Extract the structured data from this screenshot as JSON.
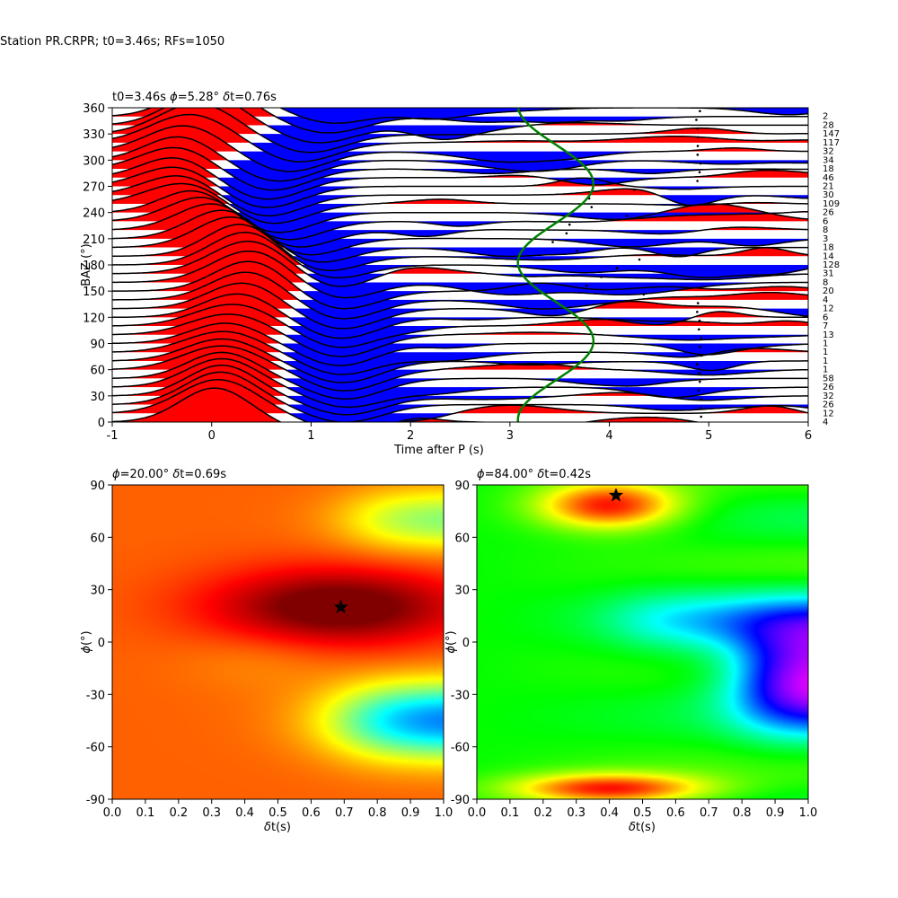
{
  "figure": {
    "suptitle": "Station PR.CRPR; t0=3.46s; RFs=1050"
  },
  "chart_data": [
    {
      "type": "wiggle",
      "title_parts": [
        "t0=3.46s ",
        "ϕ",
        "=5.28° ",
        "δ",
        "t=0.76s"
      ],
      "xlabel": "Time after P (s)",
      "ylabel": "BAZ (°)",
      "xlim": [
        -1,
        6
      ],
      "ylim": [
        0,
        360
      ],
      "xticks": [
        -1,
        0,
        1,
        2,
        3,
        4,
        5,
        6
      ],
      "yticks": [
        0,
        30,
        60,
        90,
        120,
        150,
        180,
        210,
        240,
        270,
        300,
        330,
        360
      ],
      "baz_bins": [
        0,
        10,
        20,
        30,
        40,
        50,
        60,
        70,
        80,
        90,
        100,
        110,
        120,
        130,
        140,
        150,
        160,
        170,
        180,
        190,
        200,
        210,
        220,
        230,
        240,
        250,
        260,
        270,
        280,
        290,
        300,
        310,
        320,
        330,
        340,
        350,
        360
      ],
      "counts": [
        "4",
        "12",
        "26",
        "32",
        "26",
        "58",
        "1",
        "1",
        "1",
        "1",
        "13",
        "7",
        "6",
        "12",
        "4",
        "20",
        "8",
        "31",
        "128",
        "14",
        "18",
        "3",
        "8",
        "6",
        "26",
        "109",
        "30",
        "21",
        "46",
        "18",
        "34",
        "32",
        "117",
        "147",
        "28",
        "2"
      ],
      "counts_order": "bottom-to-top",
      "positive_color": "#ff0000",
      "negative_color": "#0000ff",
      "moveout_curve": {
        "color": "#008000",
        "center_time": 3.46,
        "amplitude": 0.38
      }
    },
    {
      "type": "heatmap",
      "title_parts": [
        "ϕ",
        "=20.00° ",
        "δ",
        "t=0.69s"
      ],
      "xlabel": "δt(s)",
      "ylabel": "ϕ(°)",
      "xlim": [
        0,
        1
      ],
      "ylim": [
        -90,
        90
      ],
      "xticks": [
        0.0,
        0.1,
        0.2,
        0.3,
        0.4,
        0.5,
        0.6,
        0.7,
        0.8,
        0.9,
        1.0
      ],
      "yticks": [
        -90,
        -60,
        -30,
        0,
        30,
        60,
        90
      ],
      "colormap": "jet",
      "best": {
        "dt": 0.69,
        "phi": 20
      }
    },
    {
      "type": "heatmap",
      "title_parts": [
        "ϕ",
        "=84.00° ",
        "δ",
        "t=0.42s"
      ],
      "xlabel": "δt(s)",
      "ylabel": "ϕ(°)",
      "xlim": [
        0,
        1
      ],
      "ylim": [
        -90,
        90
      ],
      "xticks": [
        0.0,
        0.1,
        0.2,
        0.3,
        0.4,
        0.5,
        0.6,
        0.7,
        0.8,
        0.9,
        1.0
      ],
      "yticks": [
        -90,
        -60,
        -30,
        0,
        30,
        60,
        90
      ],
      "colormap": "hsv",
      "best": {
        "dt": 0.42,
        "phi": 84
      }
    }
  ]
}
